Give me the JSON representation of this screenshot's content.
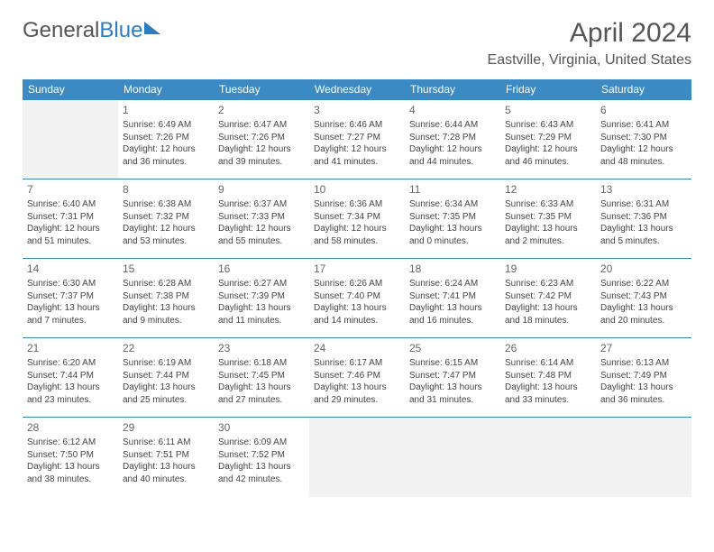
{
  "logo": {
    "text1": "General",
    "text2": "Blue"
  },
  "title": "April 2024",
  "location": "Eastville, Virginia, United States",
  "header_bg": "#3b8ac4",
  "border_color": "#3b8ac4",
  "empty_bg": "#f2f2f2",
  "weekdays": [
    "Sunday",
    "Monday",
    "Tuesday",
    "Wednesday",
    "Thursday",
    "Friday",
    "Saturday"
  ],
  "weeks": [
    [
      null,
      {
        "n": "1",
        "sr": "Sunrise: 6:49 AM",
        "ss": "Sunset: 7:26 PM",
        "d1": "Daylight: 12 hours",
        "d2": "and 36 minutes."
      },
      {
        "n": "2",
        "sr": "Sunrise: 6:47 AM",
        "ss": "Sunset: 7:26 PM",
        "d1": "Daylight: 12 hours",
        "d2": "and 39 minutes."
      },
      {
        "n": "3",
        "sr": "Sunrise: 6:46 AM",
        "ss": "Sunset: 7:27 PM",
        "d1": "Daylight: 12 hours",
        "d2": "and 41 minutes."
      },
      {
        "n": "4",
        "sr": "Sunrise: 6:44 AM",
        "ss": "Sunset: 7:28 PM",
        "d1": "Daylight: 12 hours",
        "d2": "and 44 minutes."
      },
      {
        "n": "5",
        "sr": "Sunrise: 6:43 AM",
        "ss": "Sunset: 7:29 PM",
        "d1": "Daylight: 12 hours",
        "d2": "and 46 minutes."
      },
      {
        "n": "6",
        "sr": "Sunrise: 6:41 AM",
        "ss": "Sunset: 7:30 PM",
        "d1": "Daylight: 12 hours",
        "d2": "and 48 minutes."
      }
    ],
    [
      {
        "n": "7",
        "sr": "Sunrise: 6:40 AM",
        "ss": "Sunset: 7:31 PM",
        "d1": "Daylight: 12 hours",
        "d2": "and 51 minutes."
      },
      {
        "n": "8",
        "sr": "Sunrise: 6:38 AM",
        "ss": "Sunset: 7:32 PM",
        "d1": "Daylight: 12 hours",
        "d2": "and 53 minutes."
      },
      {
        "n": "9",
        "sr": "Sunrise: 6:37 AM",
        "ss": "Sunset: 7:33 PM",
        "d1": "Daylight: 12 hours",
        "d2": "and 55 minutes."
      },
      {
        "n": "10",
        "sr": "Sunrise: 6:36 AM",
        "ss": "Sunset: 7:34 PM",
        "d1": "Daylight: 12 hours",
        "d2": "and 58 minutes."
      },
      {
        "n": "11",
        "sr": "Sunrise: 6:34 AM",
        "ss": "Sunset: 7:35 PM",
        "d1": "Daylight: 13 hours",
        "d2": "and 0 minutes."
      },
      {
        "n": "12",
        "sr": "Sunrise: 6:33 AM",
        "ss": "Sunset: 7:35 PM",
        "d1": "Daylight: 13 hours",
        "d2": "and 2 minutes."
      },
      {
        "n": "13",
        "sr": "Sunrise: 6:31 AM",
        "ss": "Sunset: 7:36 PM",
        "d1": "Daylight: 13 hours",
        "d2": "and 5 minutes."
      }
    ],
    [
      {
        "n": "14",
        "sr": "Sunrise: 6:30 AM",
        "ss": "Sunset: 7:37 PM",
        "d1": "Daylight: 13 hours",
        "d2": "and 7 minutes."
      },
      {
        "n": "15",
        "sr": "Sunrise: 6:28 AM",
        "ss": "Sunset: 7:38 PM",
        "d1": "Daylight: 13 hours",
        "d2": "and 9 minutes."
      },
      {
        "n": "16",
        "sr": "Sunrise: 6:27 AM",
        "ss": "Sunset: 7:39 PM",
        "d1": "Daylight: 13 hours",
        "d2": "and 11 minutes."
      },
      {
        "n": "17",
        "sr": "Sunrise: 6:26 AM",
        "ss": "Sunset: 7:40 PM",
        "d1": "Daylight: 13 hours",
        "d2": "and 14 minutes."
      },
      {
        "n": "18",
        "sr": "Sunrise: 6:24 AM",
        "ss": "Sunset: 7:41 PM",
        "d1": "Daylight: 13 hours",
        "d2": "and 16 minutes."
      },
      {
        "n": "19",
        "sr": "Sunrise: 6:23 AM",
        "ss": "Sunset: 7:42 PM",
        "d1": "Daylight: 13 hours",
        "d2": "and 18 minutes."
      },
      {
        "n": "20",
        "sr": "Sunrise: 6:22 AM",
        "ss": "Sunset: 7:43 PM",
        "d1": "Daylight: 13 hours",
        "d2": "and 20 minutes."
      }
    ],
    [
      {
        "n": "21",
        "sr": "Sunrise: 6:20 AM",
        "ss": "Sunset: 7:44 PM",
        "d1": "Daylight: 13 hours",
        "d2": "and 23 minutes."
      },
      {
        "n": "22",
        "sr": "Sunrise: 6:19 AM",
        "ss": "Sunset: 7:44 PM",
        "d1": "Daylight: 13 hours",
        "d2": "and 25 minutes."
      },
      {
        "n": "23",
        "sr": "Sunrise: 6:18 AM",
        "ss": "Sunset: 7:45 PM",
        "d1": "Daylight: 13 hours",
        "d2": "and 27 minutes."
      },
      {
        "n": "24",
        "sr": "Sunrise: 6:17 AM",
        "ss": "Sunset: 7:46 PM",
        "d1": "Daylight: 13 hours",
        "d2": "and 29 minutes."
      },
      {
        "n": "25",
        "sr": "Sunrise: 6:15 AM",
        "ss": "Sunset: 7:47 PM",
        "d1": "Daylight: 13 hours",
        "d2": "and 31 minutes."
      },
      {
        "n": "26",
        "sr": "Sunrise: 6:14 AM",
        "ss": "Sunset: 7:48 PM",
        "d1": "Daylight: 13 hours",
        "d2": "and 33 minutes."
      },
      {
        "n": "27",
        "sr": "Sunrise: 6:13 AM",
        "ss": "Sunset: 7:49 PM",
        "d1": "Daylight: 13 hours",
        "d2": "and 36 minutes."
      }
    ],
    [
      {
        "n": "28",
        "sr": "Sunrise: 6:12 AM",
        "ss": "Sunset: 7:50 PM",
        "d1": "Daylight: 13 hours",
        "d2": "and 38 minutes."
      },
      {
        "n": "29",
        "sr": "Sunrise: 6:11 AM",
        "ss": "Sunset: 7:51 PM",
        "d1": "Daylight: 13 hours",
        "d2": "and 40 minutes."
      },
      {
        "n": "30",
        "sr": "Sunrise: 6:09 AM",
        "ss": "Sunset: 7:52 PM",
        "d1": "Daylight: 13 hours",
        "d2": "and 42 minutes."
      },
      null,
      null,
      null,
      null
    ]
  ]
}
